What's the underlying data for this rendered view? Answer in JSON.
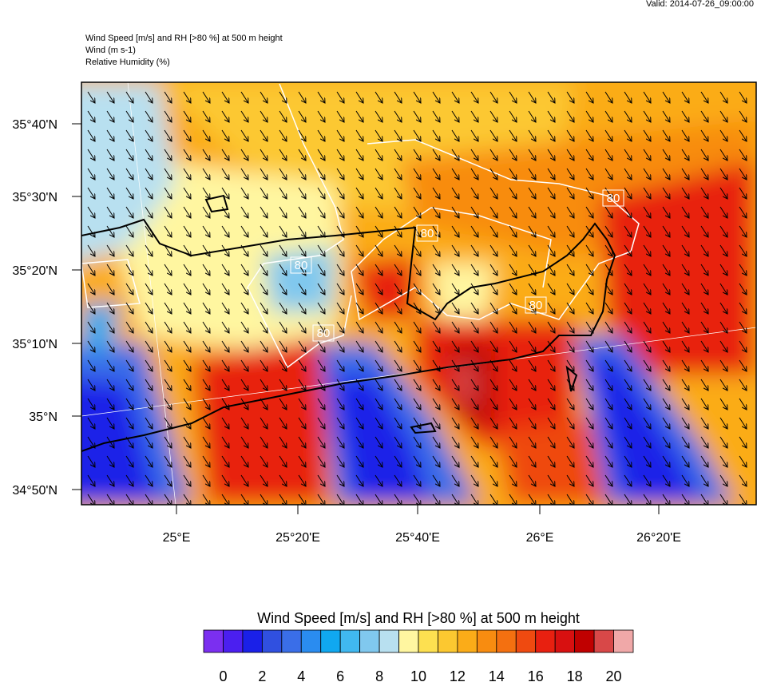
{
  "header": {
    "valid": "Valid: 2014-07-26_09:00:00",
    "lines": [
      "Wind Speed [m/s] and RH [>80 %] at 500 m height",
      "Wind   (m s-1)",
      "Relative Humidity   (%)"
    ]
  },
  "map": {
    "lat_labels": [
      "35°40'N",
      "35°30'N",
      "35°20'N",
      "35°10'N",
      "35°N",
      "34°50'N"
    ],
    "lon_labels": [
      "25°E",
      "25°20'E",
      "25°40'E",
      "26°E",
      "26°20'E"
    ],
    "contour_labels": [
      "80",
      "80",
      "80",
      "80",
      "80"
    ]
  },
  "colorbar": {
    "title": "Wind Speed [m/s] and RH [>80 %] at 500 m height",
    "colors": [
      "#7b2ff0",
      "#4b1ff0",
      "#1a20e8",
      "#3050e0",
      "#3a6ee8",
      "#2a8cf0",
      "#10a8f0",
      "#40b8f0",
      "#80c8ee",
      "#b8e0f0",
      "#fff6a0",
      "#fde050",
      "#fcc830",
      "#fbac18",
      "#f88c10",
      "#f47010",
      "#ef4a10",
      "#e82010",
      "#d81010",
      "#c00000",
      "#d84848",
      "#f0a8a8"
    ],
    "ticks": [
      0,
      2,
      4,
      6,
      8,
      10,
      12,
      14,
      16,
      18,
      20
    ]
  }
}
